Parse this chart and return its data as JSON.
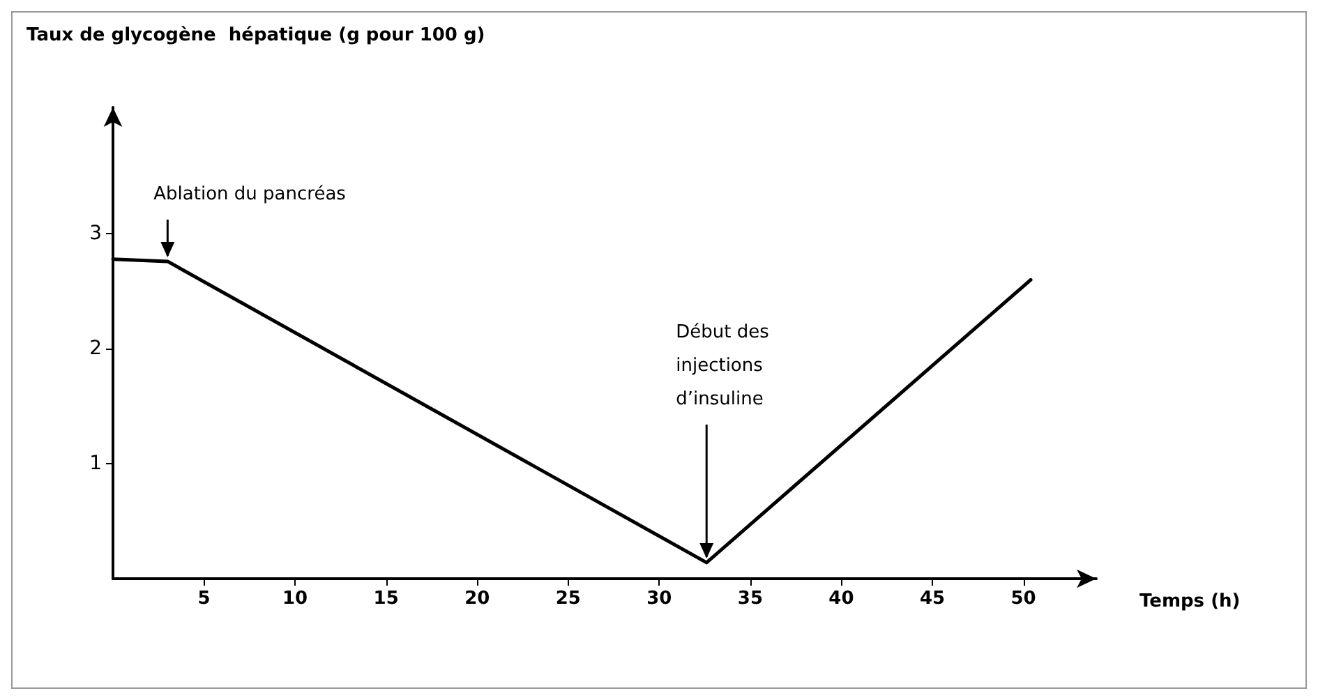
{
  "chart_data": {
    "type": "line",
    "ylabel": "Taux de glycogène  hépatique (g pour 100 g)",
    "xlabel": "Temps (h)",
    "x": [
      0,
      3,
      32.6,
      50.4
    ],
    "series": [
      {
        "color": "#000000",
        "values": [
          2.78,
          2.76,
          0.14,
          2.6
        ]
      }
    ],
    "xlim": [
      0,
      54
    ],
    "ylim": [
      0,
      4.1
    ],
    "xticks": [
      5,
      10,
      15,
      20,
      25,
      30,
      35,
      40,
      45,
      50
    ],
    "yticks": [
      1,
      2,
      3
    ],
    "grid": false,
    "marker": "none",
    "line_style": "solid",
    "annotations": [
      {
        "text": "Ablation du pancréas",
        "x": 3,
        "y": 2.76
      },
      {
        "text": "Début des\ninjections\nd’insuline",
        "x": 32.6,
        "y": 0.14
      }
    ]
  }
}
